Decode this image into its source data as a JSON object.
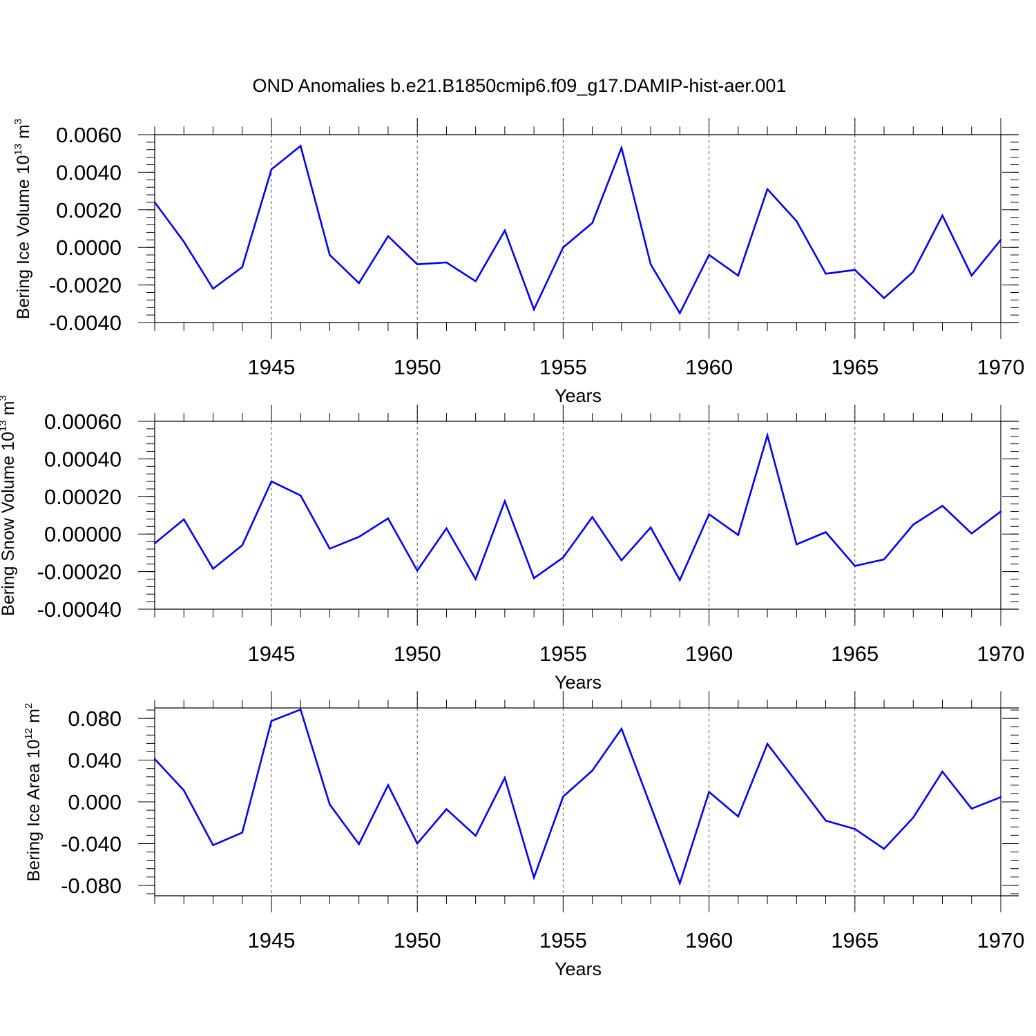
{
  "title": "OND Anomalies b.e21.B1850cmip6.f09_g17.DAMIP-hist-aer.001",
  "chart_data": [
    {
      "type": "line",
      "ylabel": {
        "text": "Bering Ice Volume 10",
        "exp": "13",
        "unit": " m",
        "unit_exp": "3"
      },
      "xlabel": "Years",
      "xlim": [
        1941,
        1970
      ],
      "ylim": [
        -0.004,
        0.006
      ],
      "yticks": [
        -0.004,
        -0.002,
        0.0,
        0.002,
        0.004,
        0.006
      ],
      "ytick_labels": [
        "-0.0040",
        "-0.0020",
        "0.0000",
        "0.0020",
        "0.0040",
        "0.0060"
      ],
      "xticks": [
        1945,
        1950,
        1955,
        1960,
        1965,
        1970
      ],
      "xtick_labels": [
        "1945",
        "1950",
        "1955",
        "1960",
        "1965",
        "1970"
      ],
      "grid": "dashed vertical lines at major x ticks",
      "color": "#0000ff",
      "x": [
        1941,
        1942,
        1943,
        1944,
        1945,
        1946,
        1947,
        1948,
        1949,
        1950,
        1951,
        1952,
        1953,
        1954,
        1955,
        1956,
        1957,
        1958,
        1959,
        1960,
        1961,
        1962,
        1963,
        1964,
        1965,
        1966,
        1967,
        1968,
        1969,
        1970
      ],
      "values": [
        0.0024,
        0.0003,
        -0.0022,
        -0.00105,
        0.00415,
        0.0054,
        -0.0004,
        -0.0019,
        0.0006,
        -0.0009,
        -0.0008,
        -0.0018,
        0.0009,
        -0.0033,
        0.0,
        0.0013,
        0.0053,
        -0.0009,
        -0.0035,
        -0.0004,
        -0.0015,
        0.0031,
        0.0014,
        -0.0014,
        -0.0012,
        -0.0027,
        -0.0013,
        0.0017,
        -0.0015,
        0.0004
      ]
    },
    {
      "type": "line",
      "ylabel": {
        "text": "Bering Snow Volume 10",
        "exp": "13",
        "unit": " m",
        "unit_exp": "3"
      },
      "xlabel": "Years",
      "xlim": [
        1941,
        1970
      ],
      "ylim": [
        -0.0004,
        0.0006
      ],
      "yticks": [
        -0.0004,
        -0.0002,
        0.0,
        0.0002,
        0.0004,
        0.0006
      ],
      "ytick_labels": [
        "-0.00040",
        "-0.00020",
        "0.00000",
        "0.00020",
        "0.00040",
        "0.00060"
      ],
      "xticks": [
        1945,
        1950,
        1955,
        1960,
        1965,
        1970
      ],
      "xtick_labels": [
        "1945",
        "1950",
        "1955",
        "1960",
        "1965",
        "1970"
      ],
      "grid": "dashed vertical lines at major x ticks",
      "color": "#0000ff",
      "x": [
        1941,
        1942,
        1943,
        1944,
        1945,
        1946,
        1947,
        1948,
        1949,
        1950,
        1951,
        1952,
        1953,
        1954,
        1955,
        1956,
        1957,
        1958,
        1959,
        1960,
        1961,
        1962,
        1963,
        1964,
        1965,
        1966,
        1967,
        1968,
        1969,
        1970
      ],
      "values": [
        -5e-05,
        7.8e-05,
        -0.000185,
        -6e-05,
        0.00028,
        0.000205,
        -7.8e-05,
        -1.5e-05,
        8.3e-05,
        -0.000195,
        3e-05,
        -0.00024,
        0.000175,
        -0.000235,
        -0.000125,
        9e-05,
        -0.00014,
        3.5e-05,
        -0.000245,
        0.000105,
        -5e-06,
        0.000525,
        -5.5e-05,
        1e-05,
        -0.00017,
        -0.000135,
        5e-05,
        0.00015,
        3e-06,
        0.00012
      ]
    },
    {
      "type": "line",
      "ylabel": {
        "text": "Bering Ice Area 10",
        "exp": "12",
        "unit": " m",
        "unit_exp": "2"
      },
      "xlabel": "Years",
      "xlim": [
        1941,
        1970
      ],
      "ylim": [
        -0.09,
        0.09
      ],
      "yticks": [
        -0.08,
        -0.04,
        0.0,
        0.04,
        0.08
      ],
      "ytick_labels": [
        "-0.080",
        "-0.040",
        "0.000",
        "0.040",
        "0.080"
      ],
      "xticks": [
        1945,
        1950,
        1955,
        1960,
        1965,
        1970
      ],
      "xtick_labels": [
        "1945",
        "1950",
        "1955",
        "1960",
        "1965",
        "1970"
      ],
      "grid": "dashed vertical lines at major x ticks",
      "color": "#0000ff",
      "x": [
        1941,
        1942,
        1943,
        1944,
        1945,
        1946,
        1947,
        1948,
        1949,
        1950,
        1951,
        1952,
        1953,
        1954,
        1955,
        1956,
        1957,
        1958,
        1959,
        1960,
        1961,
        1962,
        1963,
        1964,
        1965,
        1966,
        1967,
        1968,
        1969,
        1970
      ],
      "values": [
        0.041,
        0.011,
        -0.0415,
        -0.0295,
        0.0775,
        0.0885,
        -0.0025,
        -0.0405,
        0.016,
        -0.04,
        -0.007,
        -0.0325,
        0.023,
        -0.0725,
        0.005,
        0.03,
        0.07,
        -0.004,
        -0.078,
        0.0095,
        -0.014,
        0.0555,
        0.019,
        -0.018,
        -0.026,
        -0.045,
        -0.015,
        0.029,
        -0.0065,
        0.0045
      ]
    }
  ]
}
